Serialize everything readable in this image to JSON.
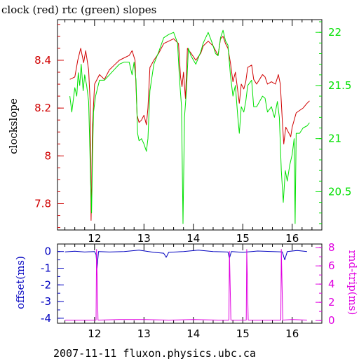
{
  "footer": "2007-11-11 fluxon.physics.ubc.ca",
  "colors": {
    "red": "#d00000",
    "green": "#00e000",
    "blue": "#0000c0",
    "magenta": "#e000e0",
    "frame": "#000000"
  },
  "chart_data": [
    {
      "type": "line",
      "title": "clock (red) rtc (green) slopes",
      "ylabel": "clockslope",
      "ylabel_right": "",
      "xlim": [
        11.25,
        16.6
      ],
      "ylim": [
        7.69,
        8.57
      ],
      "ylim_right": [
        20.14,
        22.12
      ],
      "x_ticks": [
        12,
        13,
        14,
        15,
        16
      ],
      "y_ticks": [
        7.8,
        8,
        8.2,
        8.4
      ],
      "y_ticks_right": [
        20.5,
        21,
        21.5,
        22
      ],
      "grid": false,
      "series": [
        {
          "name": "clock",
          "axis": "left",
          "color": "#d00000",
          "points": [
            [
              11.5,
              8.32
            ],
            [
              11.6,
              8.33
            ],
            [
              11.66,
              8.4
            ],
            [
              11.72,
              8.45
            ],
            [
              11.78,
              8.39
            ],
            [
              11.82,
              8.44
            ],
            [
              11.88,
              8.36
            ],
            [
              11.91,
              8.23
            ],
            [
              11.93,
              7.73
            ],
            [
              11.96,
              8.13
            ],
            [
              12.0,
              8.3
            ],
            [
              12.1,
              8.34
            ],
            [
              12.2,
              8.32
            ],
            [
              12.3,
              8.36
            ],
            [
              12.4,
              8.38
            ],
            [
              12.5,
              8.4
            ],
            [
              12.6,
              8.41
            ],
            [
              12.7,
              8.42
            ],
            [
              12.76,
              8.44
            ],
            [
              12.82,
              8.4
            ],
            [
              12.86,
              8.17
            ],
            [
              12.9,
              8.14
            ],
            [
              12.95,
              8.15
            ],
            [
              13.0,
              8.17
            ],
            [
              13.05,
              8.13
            ],
            [
              13.08,
              8.2
            ],
            [
              13.12,
              8.37
            ],
            [
              13.2,
              8.4
            ],
            [
              13.3,
              8.43
            ],
            [
              13.4,
              8.47
            ],
            [
              13.5,
              8.48
            ],
            [
              13.6,
              8.49
            ],
            [
              13.7,
              8.47
            ],
            [
              13.74,
              8.33
            ],
            [
              13.77,
              8.29
            ],
            [
              13.8,
              8.35
            ],
            [
              13.84,
              8.24
            ],
            [
              13.88,
              8.45
            ],
            [
              13.95,
              8.43
            ],
            [
              14.05,
              8.4
            ],
            [
              14.15,
              8.43
            ],
            [
              14.2,
              8.46
            ],
            [
              14.3,
              8.48
            ],
            [
              14.4,
              8.46
            ],
            [
              14.45,
              8.44
            ],
            [
              14.5,
              8.42
            ],
            [
              14.55,
              8.49
            ],
            [
              14.6,
              8.5
            ],
            [
              14.65,
              8.47
            ],
            [
              14.7,
              8.45
            ],
            [
              14.75,
              8.39
            ],
            [
              14.8,
              8.31
            ],
            [
              14.85,
              8.35
            ],
            [
              14.9,
              8.27
            ],
            [
              14.93,
              8.22
            ],
            [
              14.97,
              8.3
            ],
            [
              15.02,
              8.28
            ],
            [
              15.06,
              8.31
            ],
            [
              15.1,
              8.37
            ],
            [
              15.18,
              8.38
            ],
            [
              15.22,
              8.32
            ],
            [
              15.28,
              8.3
            ],
            [
              15.34,
              8.32
            ],
            [
              15.4,
              8.34
            ],
            [
              15.45,
              8.33
            ],
            [
              15.5,
              8.3
            ],
            [
              15.58,
              8.31
            ],
            [
              15.66,
              8.3
            ],
            [
              15.72,
              8.34
            ],
            [
              15.76,
              8.3
            ],
            [
              15.8,
              8.15
            ],
            [
              15.83,
              8.05
            ],
            [
              15.87,
              8.12
            ],
            [
              15.92,
              8.1
            ],
            [
              15.97,
              8.08
            ],
            [
              16.0,
              8.12
            ],
            [
              16.08,
              8.18
            ],
            [
              16.15,
              8.19
            ],
            [
              16.22,
              8.2
            ],
            [
              16.3,
              8.22
            ],
            [
              16.35,
              8.23
            ]
          ]
        },
        {
          "name": "rtc",
          "axis": "right",
          "color": "#00e000",
          "points": [
            [
              11.5,
              21.4
            ],
            [
              11.54,
              21.25
            ],
            [
              11.6,
              21.48
            ],
            [
              11.64,
              21.4
            ],
            [
              11.67,
              21.62
            ],
            [
              11.7,
              21.5
            ],
            [
              11.73,
              21.7
            ],
            [
              11.77,
              21.45
            ],
            [
              11.8,
              21.6
            ],
            [
              11.84,
              21.5
            ],
            [
              11.88,
              21.35
            ],
            [
              11.9,
              21.0
            ],
            [
              11.92,
              20.6
            ],
            [
              11.94,
              20.3
            ],
            [
              11.96,
              20.85
            ],
            [
              11.98,
              21.25
            ],
            [
              12.02,
              21.4
            ],
            [
              12.1,
              21.55
            ],
            [
              12.2,
              21.55
            ],
            [
              12.3,
              21.6
            ],
            [
              12.4,
              21.65
            ],
            [
              12.5,
              21.7
            ],
            [
              12.6,
              21.72
            ],
            [
              12.7,
              21.72
            ],
            [
              12.76,
              21.6
            ],
            [
              12.8,
              21.72
            ],
            [
              12.84,
              21.55
            ],
            [
              12.87,
              21.05
            ],
            [
              12.9,
              20.98
            ],
            [
              12.95,
              21.0
            ],
            [
              13.0,
              20.95
            ],
            [
              13.05,
              20.88
            ],
            [
              13.08,
              21.0
            ],
            [
              13.12,
              21.45
            ],
            [
              13.2,
              21.7
            ],
            [
              13.3,
              21.82
            ],
            [
              13.4,
              21.95
            ],
            [
              13.5,
              21.98
            ],
            [
              13.6,
              22.0
            ],
            [
              13.68,
              21.9
            ],
            [
              13.72,
              21.55
            ],
            [
              13.76,
              21.3
            ],
            [
              13.79,
              20.2
            ],
            [
              13.82,
              21.2
            ],
            [
              13.86,
              21.45
            ],
            [
              13.9,
              21.85
            ],
            [
              13.95,
              21.78
            ],
            [
              14.05,
              21.7
            ],
            [
              14.15,
              21.82
            ],
            [
              14.2,
              21.9
            ],
            [
              14.3,
              22.0
            ],
            [
              14.38,
              21.9
            ],
            [
              14.45,
              21.8
            ],
            [
              14.5,
              21.78
            ],
            [
              14.55,
              21.95
            ],
            [
              14.6,
              22.02
            ],
            [
              14.65,
              21.92
            ],
            [
              14.7,
              21.88
            ],
            [
              14.75,
              21.6
            ],
            [
              14.8,
              21.4
            ],
            [
              14.85,
              21.5
            ],
            [
              14.9,
              21.2
            ],
            [
              14.93,
              21.05
            ],
            [
              14.97,
              21.3
            ],
            [
              15.02,
              21.25
            ],
            [
              15.06,
              21.35
            ],
            [
              15.1,
              21.5
            ],
            [
              15.18,
              21.55
            ],
            [
              15.22,
              21.3
            ],
            [
              15.28,
              21.3
            ],
            [
              15.34,
              21.35
            ],
            [
              15.4,
              21.4
            ],
            [
              15.45,
              21.38
            ],
            [
              15.5,
              21.25
            ],
            [
              15.58,
              21.3
            ],
            [
              15.64,
              21.2
            ],
            [
              15.7,
              21.35
            ],
            [
              15.74,
              21.2
            ],
            [
              15.78,
              20.7
            ],
            [
              15.82,
              20.4
            ],
            [
              15.86,
              20.7
            ],
            [
              15.9,
              20.6
            ],
            [
              15.95,
              20.75
            ],
            [
              16.0,
              20.85
            ],
            [
              16.04,
              21.0
            ],
            [
              16.06,
              20.2
            ],
            [
              16.08,
              21.05
            ],
            [
              16.15,
              21.05
            ],
            [
              16.22,
              21.1
            ],
            [
              16.3,
              21.12
            ],
            [
              16.35,
              21.15
            ]
          ]
        }
      ]
    },
    {
      "type": "line",
      "title": "",
      "ylabel": "offset(ms)",
      "ylabel_right": "rnd-trip(ms)",
      "xlim": [
        11.25,
        16.6
      ],
      "ylim": [
        -4.3,
        0.45
      ],
      "ylim_right": [
        -0.3,
        8.4
      ],
      "x_ticks": [
        12,
        13,
        14,
        15,
        16
      ],
      "y_ticks": [
        0,
        -1,
        -2,
        -3,
        -4
      ],
      "y_ticks_right": [
        0,
        2,
        4,
        6,
        8
      ],
      "grid": false,
      "series": [
        {
          "name": "offset",
          "axis": "left",
          "color": "#0000c0",
          "points": [
            [
              11.4,
              -0.02
            ],
            [
              11.6,
              0.02
            ],
            [
              11.8,
              -0.03
            ],
            [
              12.0,
              0.0
            ],
            [
              12.03,
              -0.18
            ],
            [
              12.05,
              -1.0
            ],
            [
              12.08,
              0.0
            ],
            [
              12.3,
              -0.03
            ],
            [
              12.6,
              0.0
            ],
            [
              12.9,
              0.08
            ],
            [
              13.2,
              -0.05
            ],
            [
              13.4,
              -0.1
            ],
            [
              13.45,
              -0.35
            ],
            [
              13.5,
              -0.05
            ],
            [
              13.8,
              0.0
            ],
            [
              14.1,
              0.08
            ],
            [
              14.4,
              0.0
            ],
            [
              14.7,
              -0.03
            ],
            [
              14.73,
              -0.4
            ],
            [
              14.77,
              0.0
            ],
            [
              15.0,
              -0.05
            ],
            [
              15.1,
              -0.02
            ],
            [
              15.3,
              0.03
            ],
            [
              15.6,
              0.0
            ],
            [
              15.8,
              -0.02
            ],
            [
              15.85,
              -0.5
            ],
            [
              15.9,
              0.0
            ],
            [
              16.1,
              0.06
            ],
            [
              16.3,
              0.0
            ]
          ]
        },
        {
          "name": "rnd-trip",
          "axis": "right",
          "color": "#e000e0",
          "points": [
            [
              11.4,
              0.05
            ],
            [
              11.8,
              0.05
            ],
            [
              12.0,
              0.05
            ],
            [
              12.03,
              0.05
            ],
            [
              12.04,
              7.8
            ],
            [
              12.07,
              0.05
            ],
            [
              12.5,
              0.1
            ],
            [
              13.0,
              0.1
            ],
            [
              13.5,
              0.05
            ],
            [
              14.0,
              0.1
            ],
            [
              14.5,
              0.05
            ],
            [
              14.72,
              0.05
            ],
            [
              14.73,
              7.6
            ],
            [
              14.76,
              0.05
            ],
            [
              15.07,
              0.05
            ],
            [
              15.08,
              7.8
            ],
            [
              15.11,
              0.05
            ],
            [
              15.5,
              0.05
            ],
            [
              15.77,
              0.05
            ],
            [
              15.78,
              7.8
            ],
            [
              15.81,
              0.05
            ],
            [
              16.0,
              0.1
            ],
            [
              16.3,
              0.05
            ]
          ]
        }
      ]
    }
  ]
}
